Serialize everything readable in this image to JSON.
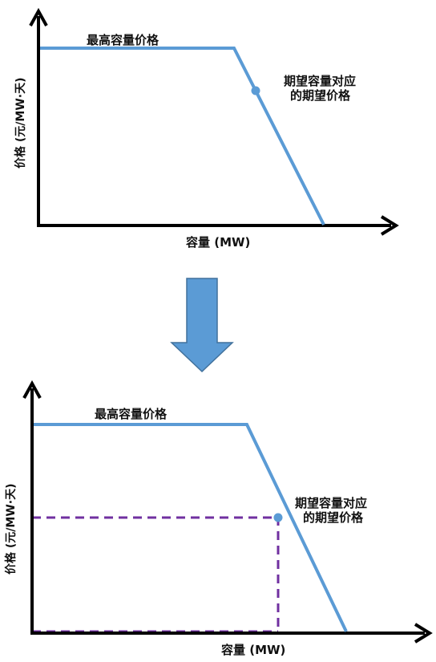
{
  "colors": {
    "curve": "#5b9bd5",
    "axis": "#000000",
    "arrow_fill": "#5b9bd5",
    "arrow_stroke": "#41719c",
    "dashed": "#7030a0"
  },
  "top_chart": {
    "max_price_label": "最高容量价格",
    "expected_label_line1": "期望容量对应",
    "expected_label_line2": "的期望价格",
    "y_axis_label": "价格 (元/MW·天)",
    "x_axis_label": "容量 (MW)"
  },
  "transition": {
    "icon": "down-arrow-icon"
  },
  "bottom_chart": {
    "max_price_label": "最高容量价格",
    "expected_label_line1": "期望容量对应",
    "expected_label_line2": "的期望价格",
    "y_axis_label": "价格 (元/MW·天)",
    "x_axis_label": "容量 (MW)"
  }
}
